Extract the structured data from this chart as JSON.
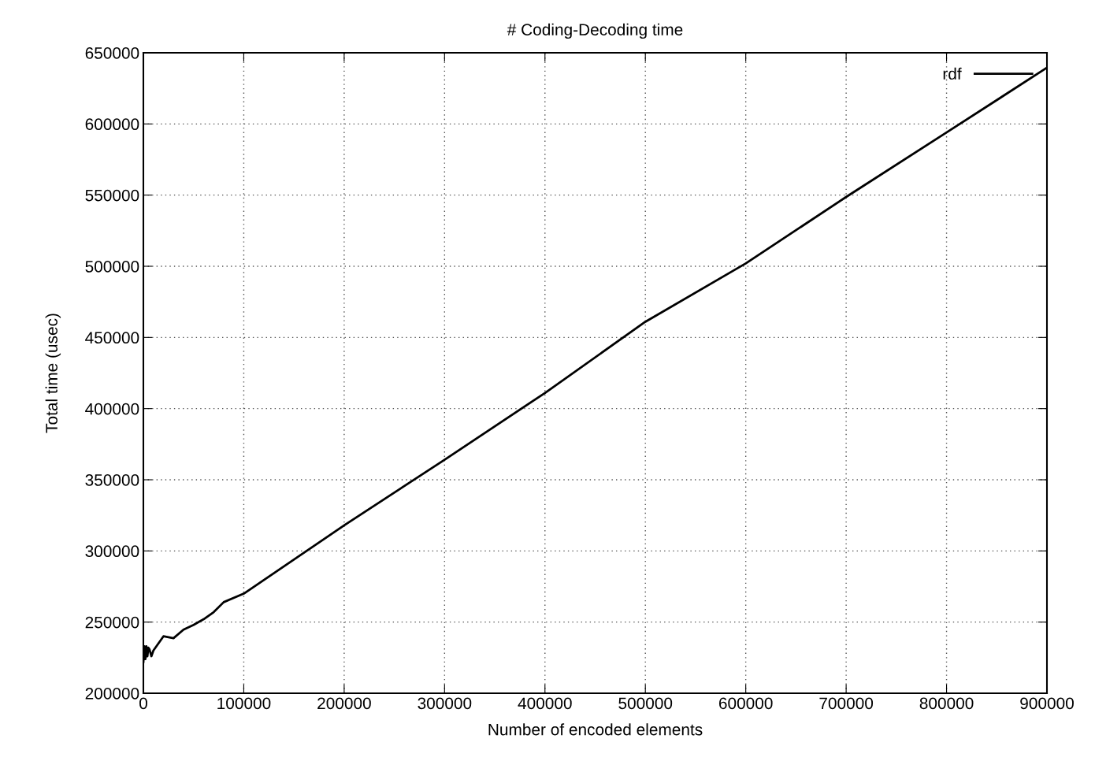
{
  "chart_data": {
    "type": "line",
    "title": "# Coding-Decoding time",
    "xlabel": "Number of encoded elements",
    "ylabel": "Total time (usec)",
    "series": [
      {
        "name": "rdf",
        "color": "#000000",
        "x": [
          0,
          1000,
          2000,
          3000,
          4000,
          5000,
          6000,
          8000,
          10000,
          20000,
          30000,
          40000,
          50000,
          60000,
          70000,
          80000,
          100000,
          200000,
          300000,
          400000,
          500000,
          600000,
          700000,
          800000,
          900000
        ],
        "values": [
          222000,
          233000,
          224000,
          233000,
          226000,
          232000,
          231000,
          226000,
          230000,
          240000,
          238700,
          244700,
          248000,
          252000,
          257000,
          264000,
          270000,
          318000,
          364000,
          411000,
          461000,
          502000,
          548700,
          594000,
          639500
        ]
      }
    ],
    "xlim": [
      0,
      900000
    ],
    "ylim": [
      200000,
      650000
    ],
    "xticks": [
      0,
      100000,
      200000,
      300000,
      400000,
      500000,
      600000,
      700000,
      800000,
      900000
    ],
    "yticks": [
      200000,
      250000,
      300000,
      350000,
      400000,
      450000,
      500000,
      550000,
      600000,
      650000
    ],
    "grid": true,
    "legend": "top right",
    "marker": "none",
    "line_style": "solid"
  }
}
